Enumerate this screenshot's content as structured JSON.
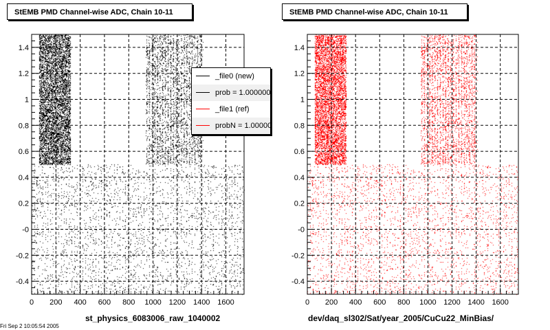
{
  "panels": [
    {
      "title": "StEMB PMD Channel-wise ADC, Chain 10-11",
      "xlabel": "st_physics_6083006_raw_1040002",
      "color": "#000000"
    },
    {
      "title": "StEMB PMD Channel-wise ADC, Chain 10-11",
      "xlabel": "dev/daq_sl302/Sat/year_2005/CuCu22_MinBias/",
      "color": "#ff0000"
    }
  ],
  "legend": {
    "entries": [
      {
        "label": "_file0 (new)",
        "color": "#000000"
      },
      {
        "label": "prob = 1.000000",
        "color": "#000000"
      },
      {
        "label": "_file1 (ref)",
        "color": "#ff0000"
      },
      {
        "label": "probN = 1.000000",
        "color": "#ff0000"
      }
    ]
  },
  "timestamp": "Fri Sep  2 10:05:54 2005",
  "chart_data": [
    {
      "type": "scatter",
      "title": "StEMB PMD Channel-wise ADC, Chain 10-11",
      "xlabel": "st_physics_6083006_raw_1040002",
      "ylabel": "",
      "xlim": [
        0,
        1750
      ],
      "ylim": [
        -0.5,
        1.5
      ],
      "xticks": [
        0,
        200,
        400,
        600,
        800,
        1000,
        1200,
        1400,
        1600
      ],
      "yticks": [
        -0.4,
        -0.2,
        0,
        0.2,
        0.4,
        0.6,
        0.8,
        1,
        1.2,
        1.4
      ],
      "ytick_labels": [
        "-0.4",
        "-0.2",
        "-0",
        "0.2",
        "0.4",
        "0.6",
        "0.8",
        "1",
        "1.2",
        "1.4"
      ],
      "grid": true,
      "series": [
        {
          "color": "#000000",
          "point_bands": [
            {
              "x": [
                60,
                320
              ],
              "y": [
                0.5,
                1.5
              ],
              "density": "high"
            },
            {
              "x": [
                940,
                1400
              ],
              "y": [
                0.5,
                1.5
              ],
              "density": "medium"
            },
            {
              "x": [
                0,
                1750
              ],
              "y": [
                -0.5,
                0.5
              ],
              "density": "medium"
            }
          ]
        }
      ]
    },
    {
      "type": "scatter",
      "title": "StEMB PMD Channel-wise ADC, Chain 10-11",
      "xlabel": "dev/daq_sl302/Sat/year_2005/CuCu22_MinBias/",
      "ylabel": "",
      "xlim": [
        0,
        1750
      ],
      "ylim": [
        -0.5,
        1.5
      ],
      "xticks": [
        0,
        200,
        400,
        600,
        800,
        1000,
        1200,
        1400,
        1600
      ],
      "yticks": [
        -0.4,
        -0.2,
        0,
        0.2,
        0.4,
        0.6,
        0.8,
        1,
        1.2,
        1.4
      ],
      "ytick_labels": [
        "-0.4",
        "-0.2",
        "-0",
        "0.2",
        "0.4",
        "0.6",
        "0.8",
        "1",
        "1.2",
        "1.4"
      ],
      "grid": true,
      "series": [
        {
          "color": "#ff0000",
          "point_bands": [
            {
              "x": [
                60,
                320
              ],
              "y": [
                0.5,
                1.5
              ],
              "density": "high"
            },
            {
              "x": [
                940,
                1400
              ],
              "y": [
                0.5,
                1.5
              ],
              "density": "medium"
            },
            {
              "x": [
                0,
                1750
              ],
              "y": [
                -0.5,
                0.5
              ],
              "density": "medium"
            }
          ]
        }
      ]
    }
  ]
}
